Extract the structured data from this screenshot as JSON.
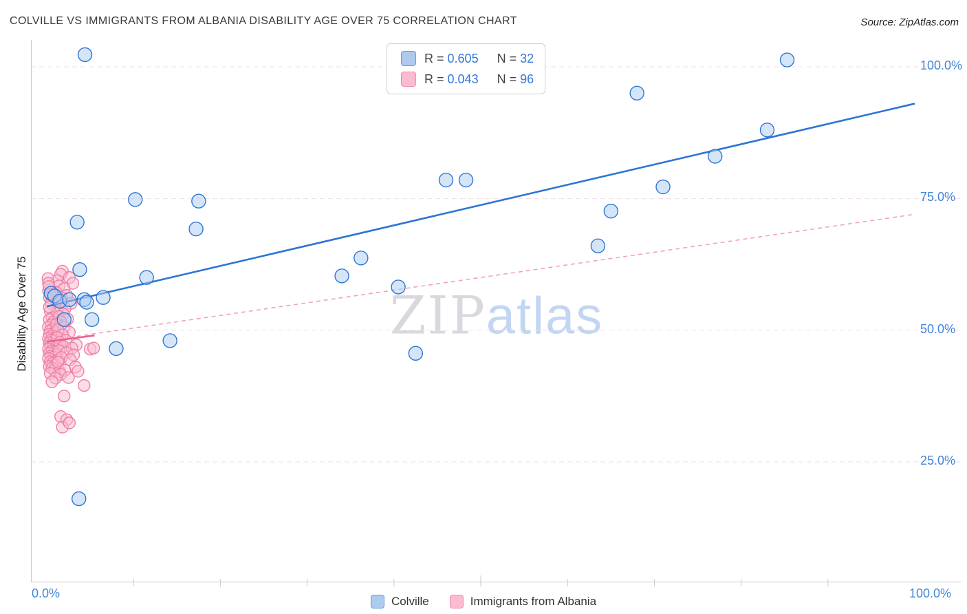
{
  "header": {
    "title": "COLVILLE VS IMMIGRANTS FROM ALBANIA DISABILITY AGE OVER 75 CORRELATION CHART",
    "source": "Source: ZipAtlas.com"
  },
  "watermark": {
    "part1": "ZIP",
    "part2": "atlas"
  },
  "axes": {
    "y_label": "Disability Age Over 75",
    "x_min_label": "0.0%",
    "x_max_label": "100.0%",
    "y_ticks": [
      {
        "value": 100,
        "label": "100.0%"
      },
      {
        "value": 75,
        "label": "75.0%"
      },
      {
        "value": 50,
        "label": "50.0%"
      },
      {
        "value": 25,
        "label": "25.0%"
      }
    ]
  },
  "legend_box": {
    "rows": [
      {
        "r_label": "R =",
        "r_value": "0.605",
        "n_label": "N =",
        "n_value": "32"
      },
      {
        "r_label": "R =",
        "r_value": "0.043",
        "n_label": "N =",
        "n_value": "96"
      }
    ]
  },
  "bottom_legend": [
    {
      "label": "Colville"
    },
    {
      "label": "Immigrants from Albania"
    }
  ],
  "chart_data": {
    "type": "scatter",
    "title": "COLVILLE VS IMMIGRANTS FROM ALBANIA DISABILITY AGE OVER 75 CORRELATION CHART",
    "xlabel": "",
    "ylabel": "Disability Age Over 75",
    "xlim": [
      0,
      100
    ],
    "ylim": [
      0,
      105
    ],
    "x_unit": "percent",
    "y_unit": "percent",
    "grid": "horizontal-dashed",
    "legend_position": "top-center",
    "series": [
      {
        "name": "Colville",
        "color": "#2e75d4",
        "fill": "#a9cbf2",
        "r": 0.605,
        "n": 32,
        "points": [
          [
            0.5,
            57
          ],
          [
            0.9,
            56.5
          ],
          [
            1.5,
            55.5
          ],
          [
            2.0,
            52
          ],
          [
            2.6,
            55.8
          ],
          [
            3.5,
            70.5
          ],
          [
            3.8,
            61.5
          ],
          [
            4.3,
            55.8
          ],
          [
            4.6,
            55.3
          ],
          [
            5.2,
            52
          ],
          [
            3.7,
            18
          ],
          [
            4.4,
            102.3
          ],
          [
            6.5,
            56.2
          ],
          [
            8.0,
            46.5
          ],
          [
            10.2,
            74.8
          ],
          [
            11.5,
            60
          ],
          [
            14.2,
            48
          ],
          [
            17.2,
            69.2
          ],
          [
            17.5,
            74.5
          ],
          [
            34.0,
            60.3
          ],
          [
            36.2,
            63.7
          ],
          [
            40.5,
            58.2
          ],
          [
            42.5,
            45.6
          ],
          [
            46.0,
            78.5
          ],
          [
            48.3,
            78.5
          ],
          [
            63.5,
            66
          ],
          [
            65.0,
            72.6
          ],
          [
            68.0,
            95
          ],
          [
            71.0,
            77.2
          ],
          [
            77.0,
            83
          ],
          [
            83.0,
            88
          ],
          [
            85.3,
            101.3
          ]
        ]
      },
      {
        "name": "Immigrants from Albania",
        "color": "#ee7fa5",
        "fill": "#f9bcd0",
        "r": 0.043,
        "n": 96,
        "points": [
          [
            0.2,
            57.5
          ],
          [
            0.3,
            56.2
          ],
          [
            0.5,
            55.1
          ],
          [
            0.4,
            53.6
          ],
          [
            0.6,
            52.4
          ],
          [
            0.3,
            52.0
          ],
          [
            0.8,
            51.6
          ],
          [
            0.5,
            51.0
          ],
          [
            0.2,
            50.6
          ],
          [
            0.7,
            50.2
          ],
          [
            0.4,
            49.9
          ],
          [
            0.9,
            49.5
          ],
          [
            0.3,
            49.2
          ],
          [
            0.6,
            48.9
          ],
          [
            1.0,
            48.6
          ],
          [
            0.2,
            48.4
          ],
          [
            0.5,
            48.1
          ],
          [
            0.8,
            47.9
          ],
          [
            0.3,
            47.6
          ],
          [
            1.2,
            47.4
          ],
          [
            0.4,
            47.1
          ],
          [
            0.7,
            46.9
          ],
          [
            1.0,
            46.6
          ],
          [
            0.2,
            46.4
          ],
          [
            0.6,
            46.1
          ],
          [
            0.9,
            45.9
          ],
          [
            0.3,
            45.6
          ],
          [
            1.1,
            45.4
          ],
          [
            0.5,
            45.1
          ],
          [
            0.8,
            44.9
          ],
          [
            0.2,
            44.6
          ],
          [
            1.3,
            44.3
          ],
          [
            0.4,
            44.0
          ],
          [
            0.7,
            43.7
          ],
          [
            1.0,
            43.4
          ],
          [
            0.3,
            43.1
          ],
          [
            0.6,
            42.8
          ],
          [
            0.9,
            42.5
          ],
          [
            1.5,
            42.1
          ],
          [
            0.4,
            41.8
          ],
          [
            1.8,
            61.2
          ],
          [
            1.6,
            60.6
          ],
          [
            2.6,
            60.0
          ],
          [
            1.2,
            59.4
          ],
          [
            3.0,
            58.9
          ],
          [
            1.4,
            58.4
          ],
          [
            2.0,
            57.9
          ],
          [
            1.1,
            57.1
          ],
          [
            2.3,
            56.6
          ],
          [
            1.7,
            56.1
          ],
          [
            1.3,
            55.6
          ],
          [
            2.8,
            55.1
          ],
          [
            1.5,
            54.6
          ],
          [
            2.1,
            54.1
          ],
          [
            1.2,
            53.6
          ],
          [
            1.9,
            53.1
          ],
          [
            1.4,
            52.6
          ],
          [
            2.4,
            52.1
          ],
          [
            1.6,
            51.6
          ],
          [
            1.1,
            51.1
          ],
          [
            2.0,
            50.6
          ],
          [
            1.3,
            50.1
          ],
          [
            2.6,
            49.6
          ],
          [
            1.8,
            49.1
          ],
          [
            1.2,
            48.6
          ],
          [
            2.2,
            48.1
          ],
          [
            1.5,
            47.7
          ],
          [
            3.4,
            47.2
          ],
          [
            1.9,
            46.9
          ],
          [
            2.9,
            46.6
          ],
          [
            5.0,
            46.4
          ],
          [
            1.4,
            46.1
          ],
          [
            2.3,
            45.7
          ],
          [
            3.1,
            45.3
          ],
          [
            1.7,
            44.8
          ],
          [
            2.7,
            44.4
          ],
          [
            1.3,
            43.9
          ],
          [
            3.3,
            43.0
          ],
          [
            2.1,
            42.4
          ],
          [
            1.6,
            41.6
          ],
          [
            2.5,
            41.0
          ],
          [
            3.6,
            42.2
          ],
          [
            4.3,
            39.5
          ],
          [
            2.0,
            37.5
          ],
          [
            1.6,
            33.6
          ],
          [
            2.3,
            33.0
          ],
          [
            1.8,
            31.6
          ],
          [
            2.6,
            32.4
          ],
          [
            0.15,
            59.8
          ],
          [
            0.2,
            58.9
          ],
          [
            0.25,
            58.3
          ],
          [
            1.0,
            40.9
          ],
          [
            0.6,
            40.2
          ],
          [
            5.4,
            46.6
          ],
          [
            0.3,
            54.4
          ],
          [
            0.4,
            56.8
          ]
        ]
      }
    ],
    "trend_lines": [
      {
        "series": "Colville",
        "style": "solid",
        "color": "#2e75d4",
        "x1": 0,
        "y1": 54.5,
        "x2": 100,
        "y2": 93
      },
      {
        "series": "Immigrants from Albania",
        "style": "dashed",
        "color": "#f4a0ba",
        "x1": 0,
        "y1": 48,
        "x2": 100,
        "y2": 72
      },
      {
        "series": "Immigrants from Albania",
        "style": "solid",
        "color": "#e8638f",
        "x1": 0,
        "y1": 47.8,
        "x2": 5.5,
        "y2": 49
      }
    ]
  }
}
